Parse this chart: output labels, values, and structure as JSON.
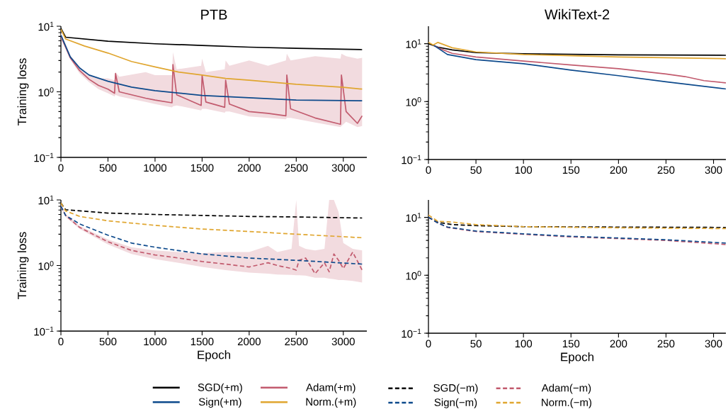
{
  "chart_data": [
    {
      "type": "line",
      "title": "PTB",
      "ylabel": "Training loss",
      "log": true,
      "line_style": "solid",
      "legend": "bottom",
      "xlim": [
        0,
        3250
      ],
      "ylim": [
        0.1,
        10
      ],
      "xticks": [
        0,
        500,
        1000,
        1500,
        2000,
        2500,
        3000
      ],
      "yticks": [
        {
          "value": 0.1,
          "label": "10$^{−1}$"
        },
        {
          "value": 1,
          "label": "10$^{0}$"
        },
        {
          "value": 10,
          "label": "10$^{1}$"
        }
      ],
      "series": [
        {
          "name": "SGD(+m)",
          "color": "#000000",
          "x": [
            0,
            50,
            500,
            1000,
            1500,
            2000,
            2500,
            3200
          ],
          "values": [
            9.3,
            6.8,
            5.9,
            5.4,
            5.1,
            4.8,
            4.6,
            4.4
          ]
        },
        {
          "name": "Adam(+m)",
          "color": "#c25b6e",
          "x": [
            0,
            100,
            200,
            300,
            400,
            500,
            570,
            580,
            620,
            900,
            1000,
            1180,
            1190,
            1230,
            1490,
            1500,
            1540,
            1740,
            1750,
            1790,
            2000,
            2200,
            2390,
            2400,
            2440,
            2700,
            2970,
            2980,
            3030,
            3150,
            3200
          ],
          "values": [
            7,
            3.3,
            2.1,
            1.55,
            1.25,
            1.1,
            0.95,
            1.9,
            1.0,
            0.8,
            0.75,
            0.68,
            2.6,
            0.9,
            0.62,
            1.8,
            0.7,
            0.58,
            1.5,
            0.65,
            0.5,
            0.47,
            0.43,
            1.8,
            0.55,
            0.4,
            0.32,
            1.8,
            0.5,
            0.33,
            0.43
          ],
          "lower": [
            6.5,
            3.1,
            1.9,
            1.4,
            1.1,
            0.95,
            0.85,
            0.9,
            0.85,
            0.7,
            0.65,
            0.58,
            0.6,
            0.62,
            0.52,
            0.55,
            0.55,
            0.48,
            0.5,
            0.5,
            0.42,
            0.4,
            0.38,
            0.4,
            0.4,
            0.34,
            0.29,
            0.3,
            0.35,
            0.29,
            0.3
          ],
          "upper": [
            8,
            3.6,
            2.4,
            1.8,
            1.6,
            1.6,
            1.5,
            2.0,
            1.7,
            2.0,
            1.8,
            1.8,
            4.0,
            2.2,
            2.5,
            3.2,
            2.0,
            2.2,
            3.0,
            2.5,
            3.0,
            2.5,
            3.0,
            3.8,
            3.0,
            3.5,
            3.2,
            3.8,
            3.5,
            3.2,
            3.3
          ]
        },
        {
          "name": "Sign(+m)",
          "color": "#0d4a8c",
          "x": [
            0,
            100,
            200,
            300,
            500,
            750,
            1000,
            1500,
            2000,
            2500,
            3200
          ],
          "values": [
            7.3,
            3.4,
            2.3,
            1.8,
            1.45,
            1.18,
            1.04,
            0.88,
            0.81,
            0.75,
            0.73
          ]
        },
        {
          "name": "Norm.(+m)",
          "color": "#e0a630",
          "x": [
            0,
            50,
            250,
            500,
            750,
            1000,
            1250,
            1500,
            1750,
            2000,
            2500,
            3000,
            3200
          ],
          "values": [
            9,
            6.4,
            5.0,
            3.9,
            2.9,
            2.4,
            2.0,
            1.8,
            1.6,
            1.5,
            1.3,
            1.17,
            1.1
          ]
        }
      ]
    },
    {
      "type": "line",
      "title": "WikiText-2",
      "log": true,
      "line_style": "solid",
      "xlim": [
        0,
        313
      ],
      "ylim": [
        0.1,
        20
      ],
      "xticks": [
        0,
        50,
        100,
        150,
        200,
        250,
        300
      ],
      "yticks": [
        {
          "value": 0.1,
          "label": "10$^{−1}$"
        },
        {
          "value": 1,
          "label": "10$^{0}$"
        },
        {
          "value": 10,
          "label": "10$^{1}$"
        }
      ],
      "series": [
        {
          "color": "#000000",
          "x": [
            0,
            10,
            25,
            50,
            100,
            200,
            313
          ],
          "values": [
            10,
            8.7,
            7.8,
            7.0,
            6.7,
            6.4,
            6.3
          ]
        },
        {
          "color": "#c25b6e",
          "x": [
            5,
            10,
            25,
            50,
            100,
            150,
            200,
            250,
            270,
            290,
            313
          ],
          "values": [
            9.5,
            8.5,
            6.8,
            5.9,
            5.0,
            4.3,
            3.7,
            3.0,
            2.7,
            2.3,
            2.1
          ]
        },
        {
          "color": "#0d4a8c",
          "x": [
            5,
            20,
            50,
            100,
            150,
            200,
            250,
            313
          ],
          "values": [
            9.5,
            6.5,
            5.3,
            4.5,
            3.5,
            2.8,
            2.2,
            1.65
          ]
        },
        {
          "color": "#e0a630",
          "x": [
            0,
            5,
            10,
            25,
            50,
            100,
            200,
            313
          ],
          "values": [
            10.5,
            9.5,
            10.5,
            8.5,
            7.2,
            6.5,
            5.9,
            5.5
          ]
        }
      ]
    },
    {
      "type": "line",
      "xlabel": "Epoch",
      "ylabel": "Training loss",
      "log": true,
      "line_style": "dashed",
      "legend": "bottom",
      "xlim": [
        0,
        3250
      ],
      "ylim": [
        0.1,
        10
      ],
      "xticks": [
        0,
        500,
        1000,
        1500,
        2000,
        2500,
        3000
      ],
      "yticks": [
        {
          "value": 0.1,
          "label": "10$^{−1}$"
        },
        {
          "value": 1,
          "label": "10$^{0}$"
        },
        {
          "value": 10,
          "label": "10$^{1}$"
        }
      ],
      "series": [
        {
          "name": "SGD(−m)",
          "color": "#000000",
          "x": [
            0,
            50,
            500,
            1000,
            1500,
            2000,
            2500,
            3200
          ],
          "values": [
            9,
            7.1,
            6.3,
            6.0,
            5.8,
            5.6,
            5.5,
            5.3
          ]
        },
        {
          "name": "Adam(−m)",
          "color": "#c25b6e",
          "x": [
            0,
            50,
            200,
            500,
            750,
            1000,
            1250,
            1500,
            1750,
            2000,
            2200,
            2300,
            2450,
            2500,
            2530,
            2600,
            2700,
            2800,
            2850,
            2900,
            2950,
            3000,
            3100,
            3200
          ],
          "values": [
            8,
            5.8,
            3.8,
            2.3,
            1.7,
            1.45,
            1.3,
            1.15,
            1.05,
            0.95,
            1.1,
            1.0,
            0.9,
            0.85,
            1.2,
            1.3,
            0.75,
            1.1,
            0.8,
            1.5,
            1.2,
            0.9,
            1.6,
            0.85
          ],
          "lower": [
            7.5,
            5.5,
            3.6,
            2.1,
            1.5,
            1.25,
            1.1,
            0.95,
            0.85,
            0.78,
            0.75,
            0.73,
            0.72,
            0.71,
            0.71,
            0.7,
            0.65,
            0.65,
            0.63,
            0.62,
            0.6,
            0.6,
            0.58,
            0.55
          ],
          "upper": [
            8.5,
            6.1,
            4.0,
            2.5,
            1.9,
            1.7,
            1.6,
            1.55,
            1.6,
            1.6,
            2.0,
            1.6,
            1.8,
            10,
            2.0,
            1.8,
            1.7,
            1.8,
            10,
            10,
            6.5,
            2.2,
            1.8,
            1.7
          ]
        },
        {
          "name": "Sign(−m)",
          "color": "#0d4a8c",
          "x": [
            0,
            50,
            200,
            500,
            750,
            1000,
            1500,
            2000,
            2500,
            3200
          ],
          "values": [
            8,
            5.8,
            4.3,
            2.9,
            2.2,
            1.9,
            1.5,
            1.3,
            1.2,
            1.05
          ]
        },
        {
          "name": "Norm.(−m)",
          "color": "#e0a630",
          "x": [
            0,
            50,
            200,
            500,
            1000,
            1500,
            2000,
            2500,
            3200
          ],
          "values": [
            9,
            6.8,
            5.6,
            4.8,
            4.1,
            3.6,
            3.3,
            3.0,
            2.65
          ]
        }
      ]
    },
    {
      "type": "line",
      "xlabel": "Epoch",
      "log": true,
      "line_style": "dashed",
      "xlim": [
        0,
        313
      ],
      "ylim": [
        0.1,
        20
      ],
      "xticks": [
        0,
        50,
        100,
        150,
        200,
        250,
        300
      ],
      "yticks": [
        {
          "value": 0.1,
          "label": "10$^{−1}$"
        },
        {
          "value": 1,
          "label": "10$^{0}$"
        },
        {
          "value": 10,
          "label": "10$^{1}$"
        }
      ],
      "series": [
        {
          "color": "#000000",
          "x": [
            0,
            10,
            25,
            50,
            100,
            200,
            313
          ],
          "values": [
            10,
            8.2,
            7.5,
            7.2,
            6.9,
            6.8,
            6.7
          ]
        },
        {
          "color": "#c25b6e",
          "x": [
            0,
            10,
            20,
            50,
            100,
            150,
            200,
            250,
            313
          ],
          "values": [
            10,
            8.0,
            6.7,
            5.7,
            5.1,
            4.6,
            4.3,
            4.0,
            3.4
          ]
        },
        {
          "color": "#0d4a8c",
          "x": [
            0,
            10,
            20,
            50,
            100,
            150,
            200,
            250,
            313
          ],
          "values": [
            10,
            8.0,
            6.8,
            5.8,
            5.2,
            4.7,
            4.4,
            4.1,
            3.6
          ]
        },
        {
          "color": "#e0a630",
          "x": [
            0,
            10,
            25,
            50,
            100,
            200,
            313
          ],
          "values": [
            11,
            8.5,
            8.3,
            7.5,
            6.9,
            6.6,
            6.4
          ]
        }
      ]
    }
  ]
}
